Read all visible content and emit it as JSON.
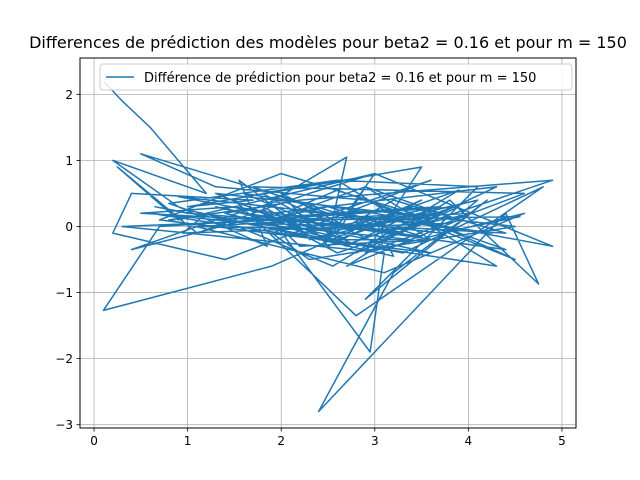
{
  "chart_data": {
    "type": "line",
    "title": "Differences de prédiction des modèles pour beta2 = 0.16 et pour m = 150",
    "xlabel": "",
    "ylabel": "",
    "xlim": [
      -0.15,
      5.15
    ],
    "ylim": [
      -3.05,
      2.55
    ],
    "xticks": [
      0,
      1,
      2,
      3,
      4,
      5
    ],
    "yticks": [
      -3,
      -2,
      -1,
      0,
      1,
      2
    ],
    "grid": true,
    "legend": "top",
    "series": [
      {
        "name": "Différence de prédiction pour beta2 = 0.16 et pour m = 150",
        "color": "#1f77b4",
        "x": [
          0.1,
          0.3,
          0.6,
          1.2,
          0.2,
          0.9,
          1.85,
          1.55,
          2.2,
          1.8,
          2.7,
          2.5,
          3.0,
          2.3,
          1.1,
          0.25,
          0.9,
          1.5,
          3.3,
          0.5,
          1.3,
          2.9,
          4.5,
          3.4,
          2.6,
          1.4,
          2.2,
          4.9,
          2.6,
          2.2,
          3.7,
          2.5,
          1.7,
          4.6,
          3.1,
          2.0,
          1.3,
          0.4,
          1.9,
          4.3,
          2.8,
          3.9,
          0.7,
          0.1,
          1.9,
          3.5,
          2.5,
          2.0,
          2.7,
          3.2,
          4.4,
          0.5,
          1.5,
          3.0,
          4.9,
          3.0,
          1.6,
          2.6,
          2.9,
          3.9,
          2.7,
          3.8,
          4.75,
          4.4,
          2.4,
          3.2,
          4.2,
          2.9,
          4.1,
          2.6,
          1.8,
          2.7,
          1.3,
          3.6,
          0.7,
          2.0,
          3.4,
          2.7,
          1.3,
          4.5,
          2.3,
          1.9,
          3.6,
          1.4,
          0.2,
          0.4,
          1.7,
          1.0,
          3.5,
          2.9,
          4.6,
          3.1,
          0.8,
          1.8,
          2.95,
          3.1,
          0.3,
          3.7,
          2.9,
          1.0,
          0.65,
          3.3,
          4.8,
          2.8,
          1.5,
          2.4,
          3.4,
          0.6,
          4.3,
          2.9,
          1.9,
          2.2,
          3.6,
          2.6,
          0.8,
          1.0,
          3.2,
          3.0,
          3.9,
          2.55,
          1.2,
          0.95,
          3.8,
          4.1,
          2.3,
          3.3,
          2.0,
          2.5,
          3.5,
          1.6,
          4.4,
          2.6,
          2.1,
          3.1,
          4.25,
          3.5,
          0.9,
          2.2,
          2.75,
          3.95,
          2.85,
          1.7,
          3.3,
          4.05,
          3.2,
          1.1,
          2.4,
          4.55,
          3.7,
          2.8
        ],
        "y": [
          2.2,
          1.9,
          1.5,
          0.5,
          1.0,
          0.3,
          -0.3,
          0.7,
          0.0,
          0.3,
          1.05,
          -0.2,
          0.8,
          0.5,
          -0.1,
          0.9,
          0.1,
          0.3,
          -0.1,
          1.1,
          0.6,
          0.4,
          -0.5,
          0.2,
          -0.2,
          0.2,
          0.4,
          0.7,
          -0.4,
          -0.1,
          0.3,
          0.2,
          0.6,
          0.5,
          -0.3,
          0.4,
          0.1,
          -0.35,
          0.2,
          0.6,
          -0.4,
          0.3,
          0.0,
          -1.27,
          -0.6,
          0.4,
          -0.3,
          0.5,
          0.0,
          0.4,
          -0.1,
          0.2,
          0.3,
          0.8,
          -0.3,
          0.2,
          0.5,
          -0.1,
          0.6,
          0.1,
          -0.6,
          0.4,
          -0.87,
          0.2,
          -2.8,
          -0.7,
          0.4,
          -1.1,
          0.6,
          0.7,
          0.5,
          -0.2,
          0.3,
          -0.4,
          0.1,
          0.8,
          0.2,
          -0.3,
          0.5,
          0.0,
          -0.5,
          -0.1,
          0.7,
          -0.5,
          -0.1,
          0.5,
          0.4,
          0.3,
          0.9,
          -0.4,
          0.2,
          -0.7,
          0.1,
          0.3,
          -1.9,
          -0.4,
          0.0,
          0.2,
          0.0,
          0.2,
          0.3,
          -0.4,
          0.6,
          -1.35,
          0.4,
          -0.2,
          -0.2,
          0.2,
          -0.6,
          0.6,
          0.1,
          -0.3,
          -0.2,
          0.7,
          0.35,
          0.25,
          -0.45,
          0.1,
          0.55,
          -0.6,
          0.2,
          -0.1,
          0.05,
          0.4,
          -0.2,
          0.25,
          0.15,
          0.3,
          -0.15,
          0.2,
          -0.35,
          0.55,
          0.25,
          0.1,
          -0.1,
          0.05,
          0.45,
          0.1,
          -0.25,
          0.35,
          0.0,
          0.05,
          0.15,
          0.2,
          -0.05,
          0.0,
          0.1,
          0.15,
          -0.1,
          0.05
        ]
      }
    ]
  }
}
